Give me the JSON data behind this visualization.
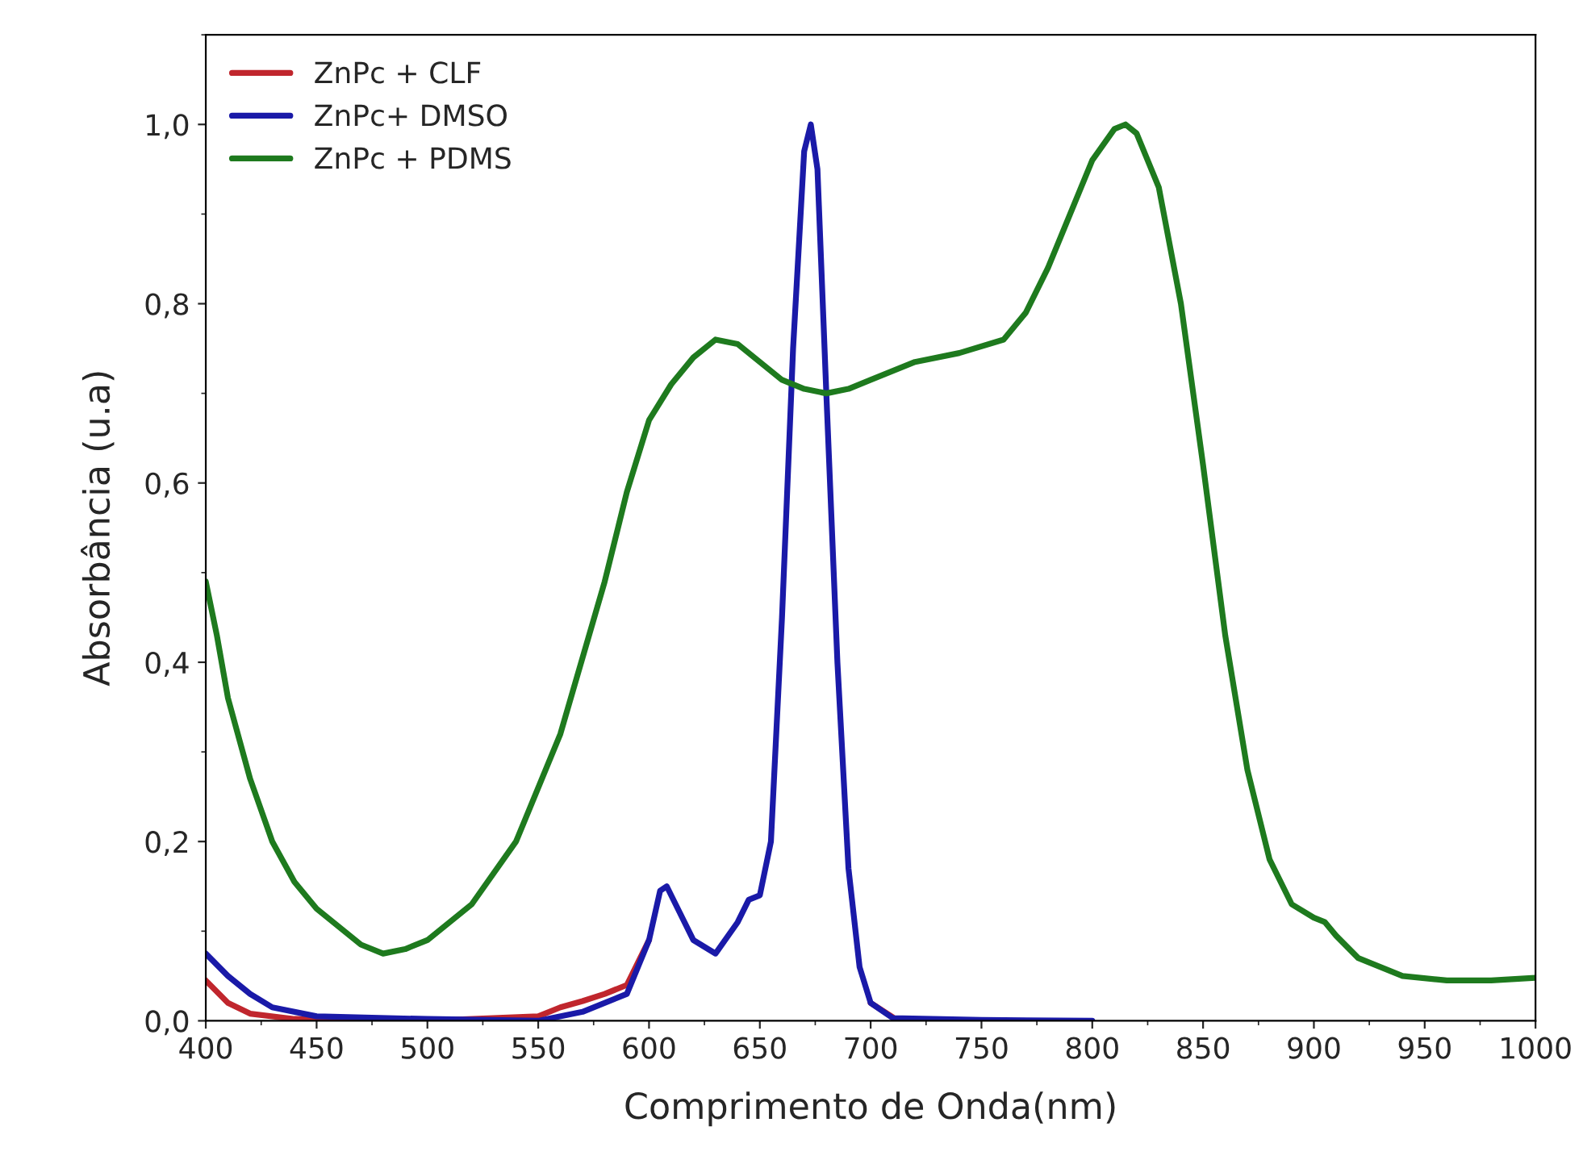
{
  "chart_data": {
    "type": "line",
    "xlabel": "Comprimento de Onda(nm)",
    "ylabel": "Absorbância (u.a)",
    "xlim": [
      400,
      1000
    ],
    "xticks": [
      400,
      450,
      500,
      550,
      600,
      650,
      700,
      750,
      800,
      850,
      900,
      950,
      1000
    ],
    "ylim": [
      0,
      1.1
    ],
    "yticks": [
      {
        "value": 0,
        "label": "0,0"
      },
      {
        "value": 0.2,
        "label": "0,2"
      },
      {
        "value": 0.4,
        "label": "0,4"
      },
      {
        "value": 0.6,
        "label": "0,6"
      },
      {
        "value": 0.8,
        "label": "0,8"
      },
      {
        "value": 1.0,
        "label": "1,0"
      }
    ],
    "grid": false,
    "legend": "top left",
    "marker": "none",
    "line_style": "solid",
    "series": [
      {
        "name": "ZnPc + CLF",
        "color": "#c0262d",
        "x": [
          400,
          410,
          420,
          440,
          500,
          550,
          560,
          570,
          580,
          590,
          600,
          605,
          608,
          612,
          620,
          630,
          640,
          645,
          650,
          655,
          660,
          665,
          670,
          673,
          676,
          680,
          685,
          690,
          700,
          710
        ],
        "values": [
          0.045,
          0.02,
          0.008,
          0.002,
          0.0,
          0.005,
          0.015,
          0.022,
          0.03,
          0.04,
          0.09,
          null,
          null,
          null,
          null,
          null,
          null,
          null,
          null,
          null,
          null,
          null,
          null,
          null,
          null,
          null,
          null,
          null,
          0.02,
          0.004
        ]
      },
      {
        "name": "ZnPc+ DMSO",
        "color": "#1a1aa8",
        "x": [
          400,
          410,
          420,
          430,
          450,
          500,
          550,
          570,
          590,
          600,
          605,
          608,
          612,
          620,
          630,
          640,
          645,
          650,
          655,
          660,
          665,
          670,
          673,
          676,
          680,
          685,
          690,
          695,
          700,
          710,
          750,
          800
        ],
        "values": [
          0.075,
          0.05,
          0.03,
          0.015,
          0.005,
          0.002,
          0.0,
          0.01,
          0.03,
          0.09,
          0.145,
          0.15,
          0.13,
          0.09,
          0.075,
          0.11,
          0.135,
          0.14,
          0.2,
          0.45,
          0.75,
          0.97,
          1.0,
          0.95,
          0.7,
          0.4,
          0.17,
          0.06,
          0.02,
          0.003,
          0.001,
          0.0
        ]
      },
      {
        "name": "ZnPc + PDMS",
        "color": "#1e7a1e",
        "x": [
          400,
          405,
          410,
          420,
          430,
          440,
          450,
          460,
          470,
          480,
          490,
          500,
          520,
          540,
          560,
          580,
          590,
          600,
          610,
          620,
          630,
          640,
          650,
          660,
          670,
          680,
          690,
          700,
          720,
          740,
          760,
          770,
          780,
          790,
          800,
          810,
          815,
          820,
          830,
          840,
          850,
          860,
          870,
          880,
          890,
          900,
          905,
          910,
          920,
          940,
          960,
          980,
          1000
        ],
        "values": [
          0.49,
          0.43,
          0.36,
          0.27,
          0.2,
          0.155,
          0.125,
          0.105,
          0.085,
          0.075,
          0.08,
          0.09,
          0.13,
          0.2,
          0.32,
          0.49,
          0.59,
          0.67,
          0.71,
          0.74,
          0.76,
          0.755,
          0.735,
          0.715,
          0.705,
          0.7,
          0.705,
          0.715,
          0.735,
          0.745,
          0.76,
          0.79,
          0.84,
          0.9,
          0.96,
          0.995,
          1.0,
          0.99,
          0.93,
          0.8,
          0.62,
          0.43,
          0.28,
          0.18,
          0.13,
          0.115,
          0.11,
          0.095,
          0.07,
          0.05,
          0.045,
          0.045,
          0.048
        ]
      }
    ]
  }
}
